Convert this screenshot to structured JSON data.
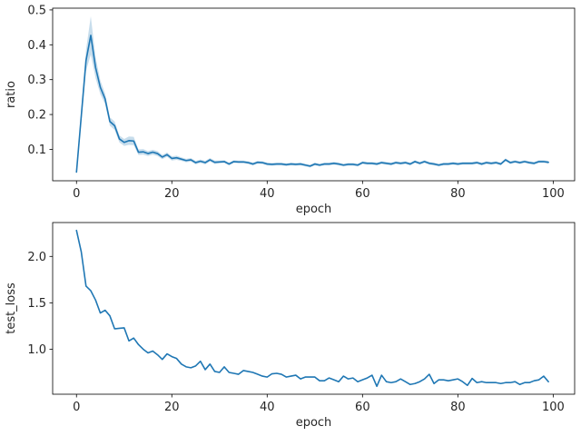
{
  "colors": {
    "line": "#1f77b4",
    "band": "#1f77b4"
  },
  "chart_data": [
    {
      "type": "line",
      "xlabel": "epoch",
      "ylabel": "ratio",
      "xlim": [
        -5,
        104.5
      ],
      "ylim": [
        0.01,
        0.505
      ],
      "xticks": [
        0,
        20,
        40,
        60,
        80,
        100
      ],
      "yticks": [
        0.1,
        0.2,
        0.3,
        0.4,
        0.5
      ],
      "ytick_labels": [
        "0.1",
        "0.2",
        "0.3",
        "0.4",
        "0.5"
      ],
      "grid": false,
      "confidence_band": true,
      "x": [
        0,
        1,
        2,
        3,
        4,
        5,
        6,
        7,
        8,
        9,
        10,
        11,
        12,
        13,
        14,
        15,
        16,
        17,
        18,
        19,
        20,
        21,
        22,
        23,
        24,
        25,
        26,
        27,
        28,
        29,
        30,
        31,
        32,
        33,
        34,
        35,
        36,
        37,
        38,
        39,
        40,
        41,
        42,
        43,
        44,
        45,
        46,
        47,
        48,
        49,
        50,
        51,
        52,
        53,
        54,
        55,
        56,
        57,
        58,
        59,
        60,
        61,
        62,
        63,
        64,
        65,
        66,
        67,
        68,
        69,
        70,
        71,
        72,
        73,
        74,
        75,
        76,
        77,
        78,
        79,
        80,
        81,
        82,
        83,
        84,
        85,
        86,
        87,
        88,
        89,
        90,
        91,
        92,
        93,
        94,
        95,
        96,
        97,
        98,
        99
      ],
      "values": [
        0.035,
        0.195,
        0.355,
        0.427,
        0.335,
        0.278,
        0.245,
        0.18,
        0.168,
        0.13,
        0.12,
        0.125,
        0.124,
        0.092,
        0.093,
        0.088,
        0.092,
        0.088,
        0.078,
        0.085,
        0.074,
        0.076,
        0.072,
        0.068,
        0.07,
        0.062,
        0.066,
        0.062,
        0.07,
        0.063,
        0.064,
        0.065,
        0.058,
        0.065,
        0.064,
        0.064,
        0.062,
        0.058,
        0.063,
        0.062,
        0.058,
        0.057,
        0.058,
        0.058,
        0.056,
        0.058,
        0.057,
        0.058,
        0.055,
        0.052,
        0.058,
        0.055,
        0.058,
        0.058,
        0.06,
        0.058,
        0.055,
        0.057,
        0.057,
        0.055,
        0.062,
        0.06,
        0.06,
        0.058,
        0.062,
        0.06,
        0.058,
        0.062,
        0.06,
        0.062,
        0.058,
        0.065,
        0.06,
        0.065,
        0.06,
        0.058,
        0.055,
        0.058,
        0.058,
        0.06,
        0.058,
        0.06,
        0.06,
        0.06,
        0.062,
        0.058,
        0.062,
        0.06,
        0.062,
        0.058,
        0.07,
        0.062,
        0.065,
        0.062,
        0.065,
        0.062,
        0.06,
        0.065,
        0.065,
        0.063
      ],
      "band": [
        0.003,
        0.02,
        0.03,
        0.055,
        0.03,
        0.02,
        0.015,
        0.012,
        0.012,
        0.01,
        0.01,
        0.012,
        0.012,
        0.008,
        0.008,
        0.007,
        0.007,
        0.007,
        0.006,
        0.006,
        0.006,
        0.006,
        0.005,
        0.005,
        0.005,
        0.005,
        0.005,
        0.005,
        0.005,
        0.005,
        0.004,
        0.004,
        0.004,
        0.004,
        0.004,
        0.004,
        0.004,
        0.004,
        0.004,
        0.004,
        0.004,
        0.004,
        0.004,
        0.004,
        0.004,
        0.004,
        0.004,
        0.004,
        0.004,
        0.004,
        0.004,
        0.004,
        0.004,
        0.004,
        0.004,
        0.004,
        0.004,
        0.004,
        0.004,
        0.004,
        0.004,
        0.004,
        0.004,
        0.004,
        0.004,
        0.004,
        0.004,
        0.004,
        0.004,
        0.004,
        0.004,
        0.004,
        0.004,
        0.004,
        0.004,
        0.004,
        0.004,
        0.004,
        0.004,
        0.004,
        0.004,
        0.004,
        0.004,
        0.004,
        0.004,
        0.004,
        0.004,
        0.004,
        0.004,
        0.004,
        0.004,
        0.004,
        0.004,
        0.004,
        0.004,
        0.004,
        0.004,
        0.004,
        0.004,
        0.004
      ]
    },
    {
      "type": "line",
      "xlabel": "epoch",
      "ylabel": "test_loss",
      "xlim": [
        -5,
        104.5
      ],
      "ylim": [
        0.515,
        2.365
      ],
      "xticks": [
        0,
        20,
        40,
        60,
        80,
        100
      ],
      "yticks": [
        1.0,
        1.5,
        2.0
      ],
      "ytick_labels": [
        "1.0",
        "1.5",
        "2.0"
      ],
      "grid": false,
      "x": [
        0,
        1,
        2,
        3,
        4,
        5,
        6,
        7,
        8,
        9,
        10,
        11,
        12,
        13,
        14,
        15,
        16,
        17,
        18,
        19,
        20,
        21,
        22,
        23,
        24,
        25,
        26,
        27,
        28,
        29,
        30,
        31,
        32,
        33,
        34,
        35,
        36,
        37,
        38,
        39,
        40,
        41,
        42,
        43,
        44,
        45,
        46,
        47,
        48,
        49,
        50,
        51,
        52,
        53,
        54,
        55,
        56,
        57,
        58,
        59,
        60,
        61,
        62,
        63,
        64,
        65,
        66,
        67,
        68,
        69,
        70,
        71,
        72,
        73,
        74,
        75,
        76,
        77,
        78,
        79,
        80,
        81,
        82,
        83,
        84,
        85,
        86,
        87,
        88,
        89,
        90,
        91,
        92,
        93,
        94,
        95,
        96,
        97,
        98,
        99
      ],
      "values": [
        2.28,
        2.05,
        1.68,
        1.63,
        1.53,
        1.39,
        1.42,
        1.36,
        1.22,
        1.225,
        1.23,
        1.09,
        1.12,
        1.05,
        1.0,
        0.96,
        0.98,
        0.94,
        0.89,
        0.95,
        0.92,
        0.9,
        0.84,
        0.81,
        0.8,
        0.82,
        0.87,
        0.78,
        0.84,
        0.76,
        0.75,
        0.81,
        0.75,
        0.74,
        0.73,
        0.77,
        0.76,
        0.75,
        0.73,
        0.71,
        0.7,
        0.735,
        0.74,
        0.73,
        0.7,
        0.71,
        0.72,
        0.68,
        0.7,
        0.7,
        0.7,
        0.66,
        0.66,
        0.69,
        0.67,
        0.65,
        0.71,
        0.68,
        0.69,
        0.65,
        0.67,
        0.69,
        0.72,
        0.6,
        0.72,
        0.65,
        0.64,
        0.65,
        0.68,
        0.65,
        0.62,
        0.63,
        0.65,
        0.68,
        0.73,
        0.63,
        0.67,
        0.67,
        0.66,
        0.67,
        0.68,
        0.65,
        0.61,
        0.685,
        0.64,
        0.65,
        0.64,
        0.64,
        0.64,
        0.63,
        0.64,
        0.64,
        0.65,
        0.62,
        0.64,
        0.64,
        0.66,
        0.67,
        0.71,
        0.65
      ]
    }
  ]
}
